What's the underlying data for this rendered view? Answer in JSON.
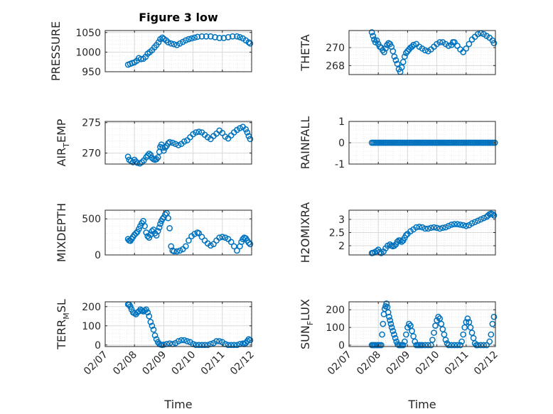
{
  "figure": {
    "title": "Figure 3 low"
  },
  "colors": {
    "marker": "#0072BD",
    "axes": "#262626",
    "grid_major": "#d9d9d9",
    "grid_minor": "#e6e6e6"
  },
  "chart_data": [
    {
      "type": "scatter",
      "name": "pressure",
      "ylabel": "PRESSURE",
      "ylim": [
        950,
        1055
      ],
      "yticks": [
        950,
        1000,
        1050
      ],
      "ytick_labels": [
        "950",
        "1000",
        "1050"
      ],
      "xlim": [
        0,
        5
      ],
      "xticks": [
        0,
        1,
        2,
        3,
        4,
        5
      ],
      "xtick_labels": [
        "02/07",
        "02/08",
        "02/09",
        "02/10",
        "02/11",
        "02/12"
      ],
      "x": [
        0.78,
        0.85,
        0.92,
        1.0,
        1.08,
        1.15,
        1.22,
        1.3,
        1.38,
        1.45,
        1.52,
        1.6,
        1.68,
        1.75,
        1.82,
        1.88,
        1.95,
        2.0,
        2.08,
        2.15,
        2.25,
        2.35,
        2.45,
        2.55,
        2.65,
        2.75,
        2.85,
        2.95,
        3.05,
        3.15,
        3.3,
        3.45,
        3.6,
        3.75,
        3.9,
        4.05,
        4.2,
        4.35,
        4.5,
        4.6,
        4.7,
        4.8,
        4.9,
        4.95
      ],
      "y": [
        968,
        970,
        972,
        974,
        978,
        985,
        982,
        983,
        988,
        996,
        1000,
        1005,
        1012,
        1018,
        1025,
        1033,
        1037,
        1034,
        1030,
        1025,
        1022,
        1020,
        1018,
        1022,
        1026,
        1030,
        1033,
        1035,
        1037,
        1039,
        1040,
        1040,
        1040,
        1038,
        1036,
        1036,
        1038,
        1040,
        1040,
        1038,
        1035,
        1030,
        1025,
        1022
      ]
    },
    {
      "type": "scatter",
      "name": "theta",
      "ylabel": "THETA",
      "ylim": [
        267.0,
        271.9
      ],
      "yticks": [
        268,
        270
      ],
      "ytick_labels": [
        "268",
        "270"
      ],
      "xlim": [
        0,
        5
      ],
      "xticks": [
        0,
        1,
        2,
        3,
        4,
        5
      ],
      "xtick_labels": [
        "02/07",
        "02/08",
        "02/09",
        "02/10",
        "02/11",
        "02/12"
      ],
      "x": [
        0.78,
        0.82,
        0.86,
        0.9,
        0.95,
        1.0,
        1.05,
        1.1,
        1.15,
        1.2,
        1.25,
        1.3,
        1.35,
        1.4,
        1.45,
        1.5,
        1.55,
        1.6,
        1.65,
        1.7,
        1.75,
        1.8,
        1.85,
        1.9,
        1.95,
        2.0,
        2.05,
        2.1,
        2.15,
        2.2,
        2.3,
        2.4,
        2.5,
        2.6,
        2.7,
        2.8,
        2.9,
        3.0,
        3.1,
        3.2,
        3.3,
        3.4,
        3.5,
        3.55,
        3.6,
        3.7,
        3.8,
        3.9,
        4.0,
        4.1,
        4.2,
        4.3,
        4.4,
        4.5,
        4.6,
        4.7,
        4.8,
        4.9,
        4.95
      ],
      "y": [
        271.7,
        271.3,
        270.9,
        270.6,
        270.8,
        270.4,
        270.1,
        270.0,
        269.7,
        269.5,
        269.9,
        270.3,
        270.5,
        270.4,
        270.1,
        269.6,
        269.0,
        268.6,
        268.2,
        267.6,
        267.3,
        267.8,
        268.4,
        269.0,
        269.4,
        269.6,
        269.8,
        270.0,
        270.1,
        270.3,
        270.4,
        270.1,
        269.9,
        269.7,
        269.6,
        269.8,
        270.1,
        270.4,
        270.6,
        270.6,
        270.4,
        270.2,
        270.3,
        270.6,
        270.6,
        270.2,
        269.8,
        269.5,
        269.9,
        270.4,
        270.9,
        271.2,
        271.5,
        271.6,
        271.5,
        271.3,
        271.1,
        270.8,
        270.5
      ]
    },
    {
      "type": "scatter",
      "name": "air-temp",
      "ylabel": "AIR_TEMP",
      "ylim": [
        268.2,
        275.2
      ],
      "yticks": [
        270,
        275
      ],
      "ytick_labels": [
        "270",
        "275"
      ],
      "xlim": [
        0,
        5
      ],
      "xticks": [
        0,
        1,
        2,
        3,
        4,
        5
      ],
      "xtick_labels": [
        "02/07",
        "02/08",
        "02/09",
        "02/10",
        "02/11",
        "02/12"
      ],
      "x": [
        0.78,
        0.82,
        0.88,
        0.95,
        1.0,
        1.05,
        1.1,
        1.18,
        1.25,
        1.32,
        1.4,
        1.45,
        1.5,
        1.55,
        1.6,
        1.65,
        1.7,
        1.75,
        1.8,
        1.85,
        1.88,
        1.92,
        1.96,
        2.0,
        2.05,
        2.1,
        2.15,
        2.2,
        2.3,
        2.4,
        2.5,
        2.6,
        2.7,
        2.8,
        2.9,
        3.0,
        3.1,
        3.2,
        3.3,
        3.4,
        3.5,
        3.6,
        3.7,
        3.8,
        3.9,
        4.0,
        4.1,
        4.2,
        4.3,
        4.4,
        4.5,
        4.6,
        4.7,
        4.8,
        4.85,
        4.9,
        4.95
      ],
      "y": [
        269.4,
        268.9,
        268.7,
        268.5,
        268.9,
        268.6,
        268.4,
        268.3,
        268.5,
        268.8,
        269.3,
        269.6,
        269.9,
        269.7,
        269.2,
        269.0,
        268.9,
        269.0,
        269.3,
        270.2,
        271.0,
        271.4,
        270.9,
        270.4,
        270.9,
        271.2,
        271.6,
        271.8,
        271.7,
        271.5,
        271.3,
        271.5,
        271.9,
        272.1,
        272.6,
        273.1,
        273.4,
        273.5,
        273.4,
        273.0,
        272.6,
        272.3,
        272.8,
        273.2,
        273.7,
        273.3,
        272.7,
        272.4,
        272.9,
        273.4,
        273.8,
        274.1,
        274.3,
        273.9,
        273.4,
        272.8,
        272.3
      ]
    },
    {
      "type": "scatter",
      "name": "rainfall",
      "ylabel": "RAINFALL",
      "ylim": [
        -1,
        1
      ],
      "yticks": [
        -1,
        0,
        1
      ],
      "ytick_labels": [
        "-1",
        "0",
        "1"
      ],
      "xlim": [
        0,
        5
      ],
      "xticks": [
        0,
        1,
        2,
        3,
        4,
        5
      ],
      "xtick_labels": [
        "02/07",
        "02/08",
        "02/09",
        "02/10",
        "02/11",
        "02/12"
      ],
      "x_start": 0.78,
      "x_end": 5.0,
      "x_step": 0.05,
      "constant_value": 0
    },
    {
      "type": "scatter",
      "name": "mixdepth",
      "ylabel": "MIXDEPTH",
      "ylim": [
        0,
        620
      ],
      "yticks": [
        0,
        500
      ],
      "ytick_labels": [
        "0",
        "500"
      ],
      "xlim": [
        0,
        5
      ],
      "xticks": [
        0,
        1,
        2,
        3,
        4,
        5
      ],
      "xtick_labels": [
        "02/07",
        "02/08",
        "02/09",
        "02/10",
        "02/11",
        "02/12"
      ],
      "x": [
        0.78,
        0.82,
        0.86,
        0.9,
        0.95,
        1.0,
        1.05,
        1.1,
        1.15,
        1.2,
        1.25,
        1.3,
        1.35,
        1.4,
        1.45,
        1.5,
        1.55,
        1.6,
        1.65,
        1.7,
        1.75,
        1.8,
        1.85,
        1.88,
        1.92,
        1.96,
        2.0,
        2.05,
        2.1,
        2.15,
        2.2,
        2.25,
        2.3,
        2.35,
        2.45,
        2.55,
        2.65,
        2.75,
        2.85,
        2.95,
        3.05,
        3.15,
        3.2,
        3.3,
        3.4,
        3.5,
        3.6,
        3.7,
        3.8,
        3.9,
        4.0,
        4.1,
        4.2,
        4.3,
        4.4,
        4.5,
        4.6,
        4.65,
        4.7,
        4.75,
        4.8,
        4.85,
        4.9,
        4.95
      ],
      "y": [
        220,
        200,
        195,
        220,
        250,
        280,
        300,
        320,
        360,
        400,
        440,
        470,
        400,
        310,
        260,
        240,
        280,
        330,
        350,
        300,
        270,
        330,
        380,
        430,
        470,
        500,
        520,
        560,
        580,
        510,
        370,
        120,
        60,
        50,
        50,
        60,
        80,
        120,
        200,
        260,
        290,
        310,
        300,
        250,
        200,
        160,
        130,
        150,
        200,
        240,
        250,
        240,
        220,
        180,
        120,
        60,
        120,
        180,
        220,
        240,
        230,
        200,
        170,
        150
      ]
    },
    {
      "type": "scatter",
      "name": "h2omixra",
      "ylabel": "H2OMIXRA",
      "ylim": [
        1.65,
        3.35
      ],
      "yticks": [
        2,
        2.5,
        3
      ],
      "ytick_labels": [
        "2",
        "2.5",
        "3"
      ],
      "xlim": [
        0,
        5
      ],
      "xticks": [
        0,
        1,
        2,
        3,
        4,
        5
      ],
      "xtick_labels": [
        "02/07",
        "02/08",
        "02/09",
        "02/10",
        "02/11",
        "02/12"
      ],
      "x": [
        0.78,
        0.82,
        0.88,
        0.95,
        1.0,
        1.05,
        1.1,
        1.18,
        1.25,
        1.32,
        1.4,
        1.45,
        1.5,
        1.55,
        1.6,
        1.65,
        1.7,
        1.75,
        1.8,
        1.85,
        1.9,
        1.95,
        2.0,
        2.1,
        2.2,
        2.3,
        2.4,
        2.5,
        2.6,
        2.7,
        2.8,
        2.9,
        3.0,
        3.1,
        3.2,
        3.3,
        3.4,
        3.5,
        3.6,
        3.7,
        3.8,
        3.9,
        4.0,
        4.1,
        4.2,
        4.3,
        4.4,
        4.5,
        4.6,
        4.7,
        4.75,
        4.8,
        4.85,
        4.9,
        4.95
      ],
      "y": [
        1.72,
        1.73,
        1.76,
        1.8,
        1.85,
        1.76,
        1.72,
        1.78,
        1.9,
        2.0,
        2.05,
        2.0,
        1.98,
        2.0,
        2.05,
        2.15,
        2.2,
        2.2,
        2.15,
        2.2,
        2.3,
        2.4,
        2.45,
        2.55,
        2.62,
        2.7,
        2.72,
        2.7,
        2.65,
        2.65,
        2.68,
        2.7,
        2.68,
        2.65,
        2.68,
        2.7,
        2.75,
        2.8,
        2.82,
        2.82,
        2.8,
        2.78,
        2.75,
        2.78,
        2.85,
        2.9,
        2.95,
        3.0,
        3.05,
        3.1,
        3.15,
        3.2,
        3.22,
        3.2,
        3.15
      ]
    },
    {
      "type": "scatter",
      "name": "terr-msl",
      "ylabel": "TERR_MSL",
      "ylim": [
        -8,
        225
      ],
      "yticks": [
        0,
        100,
        200
      ],
      "ytick_labels": [
        "0",
        "100",
        "200"
      ],
      "xlim": [
        0,
        5
      ],
      "xticks": [
        0,
        1,
        2,
        3,
        4,
        5
      ],
      "xtick_labels": [
        "02/07",
        "02/08",
        "02/09",
        "02/10",
        "02/11",
        "02/12"
      ],
      "x": [
        0.78,
        0.82,
        0.86,
        0.9,
        0.95,
        1.0,
        1.05,
        1.1,
        1.15,
        1.2,
        1.25,
        1.3,
        1.35,
        1.4,
        1.45,
        1.5,
        1.55,
        1.6,
        1.65,
        1.7,
        1.75,
        1.8,
        1.85,
        1.9,
        1.95,
        2.0,
        2.1,
        2.2,
        2.3,
        2.4,
        2.5,
        2.6,
        2.7,
        2.8,
        2.9,
        3.0,
        3.1,
        3.2,
        3.3,
        3.4,
        3.5,
        3.6,
        3.7,
        3.8,
        3.9,
        4.0,
        4.1,
        4.2,
        4.3,
        4.4,
        4.5,
        4.6,
        4.7,
        4.75,
        4.8,
        4.85,
        4.9,
        4.95
      ],
      "y": [
        212,
        210,
        200,
        185,
        170,
        165,
        160,
        170,
        175,
        185,
        180,
        175,
        180,
        185,
        170,
        150,
        120,
        100,
        80,
        50,
        30,
        15,
        5,
        2,
        0,
        2,
        5,
        8,
        5,
        10,
        20,
        25,
        25,
        20,
        15,
        5,
        0,
        0,
        0,
        0,
        0,
        5,
        10,
        20,
        20,
        15,
        5,
        0,
        0,
        0,
        0,
        5,
        8,
        5,
        10,
        20,
        30,
        25
      ]
    },
    {
      "type": "scatter",
      "name": "sun-flux",
      "ylabel": "SUN_FLUX",
      "ylim": [
        -8,
        245
      ],
      "yticks": [
        0,
        100,
        200
      ],
      "ytick_labels": [
        "0",
        "100",
        "200"
      ],
      "xlim": [
        0,
        5
      ],
      "xticks": [
        0,
        1,
        2,
        3,
        4,
        5
      ],
      "xtick_labels": [
        "02/07",
        "02/08",
        "02/09",
        "02/10",
        "02/11",
        "02/12"
      ],
      "x": [
        0.78,
        0.82,
        0.86,
        0.9,
        0.95,
        1.0,
        1.05,
        1.1,
        1.13,
        1.16,
        1.19,
        1.22,
        1.25,
        1.28,
        1.31,
        1.34,
        1.37,
        1.4,
        1.43,
        1.46,
        1.5,
        1.54,
        1.58,
        1.62,
        1.66,
        1.7,
        1.75,
        1.8,
        1.85,
        1.9,
        1.95,
        2.0,
        2.05,
        2.1,
        2.15,
        2.2,
        2.25,
        2.3,
        2.35,
        2.4,
        2.45,
        2.5,
        2.6,
        2.7,
        2.8,
        2.85,
        2.9,
        2.95,
        3.0,
        3.05,
        3.1,
        3.15,
        3.2,
        3.25,
        3.3,
        3.35,
        3.4,
        3.5,
        3.6,
        3.7,
        3.8,
        3.85,
        3.9,
        3.95,
        4.0,
        4.05,
        4.1,
        4.15,
        4.2,
        4.25,
        4.3,
        4.35,
        4.4,
        4.5,
        4.6,
        4.7,
        4.8,
        4.85,
        4.9,
        4.95
      ],
      "y": [
        0,
        0,
        0,
        0,
        0,
        0,
        0,
        0,
        60,
        120,
        175,
        205,
        220,
        235,
        215,
        185,
        160,
        140,
        120,
        100,
        80,
        60,
        40,
        20,
        5,
        0,
        0,
        0,
        0,
        20,
        60,
        100,
        120,
        110,
        80,
        50,
        20,
        0,
        0,
        0,
        0,
        0,
        0,
        0,
        0,
        30,
        70,
        110,
        140,
        160,
        150,
        120,
        90,
        60,
        30,
        10,
        0,
        0,
        0,
        0,
        0,
        20,
        60,
        100,
        130,
        150,
        130,
        100,
        70,
        40,
        10,
        0,
        0,
        0,
        0,
        0,
        20,
        60,
        120,
        160
      ]
    }
  ],
  "shared_xlabel": "Time"
}
